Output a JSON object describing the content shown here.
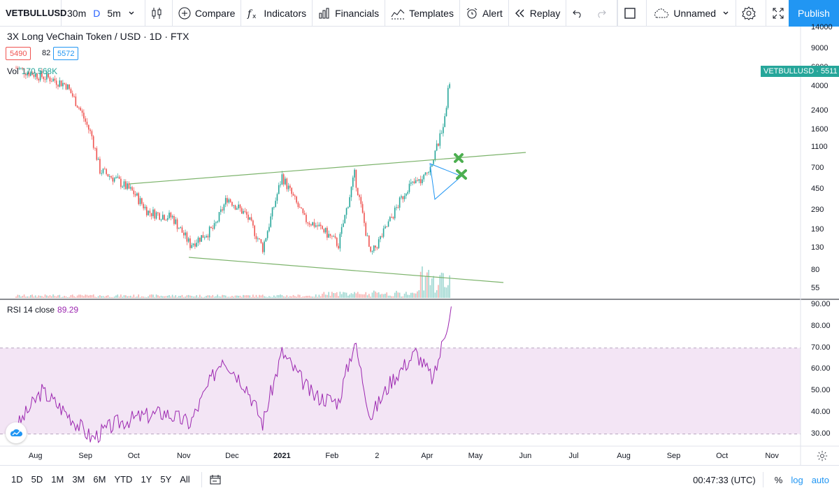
{
  "toolbar": {
    "symbol": "VETBULLUSD",
    "intervals": [
      "30m",
      "D",
      "5m"
    ],
    "active_interval": "D",
    "compare": "Compare",
    "indicators": "Indicators",
    "financials": "Financials",
    "templates": "Templates",
    "alert": "Alert",
    "replay": "Replay",
    "layout_name": "Unnamed",
    "publish": "Publish"
  },
  "legend": {
    "title": "3X Long VeChain Token / USD · 1D · FTX",
    "bid": "5490",
    "spread": "82",
    "ask": "5572",
    "vol_label": "Vol",
    "vol_value": "170.568K",
    "rsi_label": "RSI 14 close",
    "rsi_value": "89.29"
  },
  "price_tag": {
    "symbol": "VETBULLUSD",
    "value": "5511"
  },
  "price_axis": [
    "14000",
    "9000",
    "6000",
    "4000",
    "2400",
    "1600",
    "1100",
    "700",
    "450",
    "290",
    "190",
    "130",
    "80",
    "55"
  ],
  "rsi_axis": [
    "90.00",
    "80.00",
    "70.00",
    "60.00",
    "50.00",
    "40.00",
    "30.00"
  ],
  "time_axis": [
    "Aug",
    "Sep",
    "Oct",
    "Nov",
    "Dec",
    "2021",
    "Feb",
    "2",
    "Apr",
    "May",
    "Jun",
    "Jul",
    "Aug",
    "Sep",
    "Oct",
    "Nov"
  ],
  "bottom": {
    "ranges": [
      "1D",
      "5D",
      "1M",
      "3M",
      "6M",
      "YTD",
      "1Y",
      "5Y",
      "All"
    ],
    "clock": "00:47:33 (UTC)",
    "percent": "%",
    "log": "log",
    "auto": "auto"
  },
  "colors": {
    "up": "#26a69a",
    "down": "#ef5350",
    "rsi": "#9c27b0",
    "rsi_band": "#f3e5f5",
    "trendline": "#7cb36b",
    "accent": "#2196f3"
  },
  "chart_data": {
    "type": "candlestick",
    "title": "3X Long VeChain Token / USD · 1D · FTX",
    "y_scale": "log",
    "ylim": [
      45,
      14000
    ],
    "close_series": [
      {
        "date": "2020-07-20",
        "close": 6000
      },
      {
        "date": "2020-08-01",
        "close": 5200
      },
      {
        "date": "2020-08-10",
        "close": 4800
      },
      {
        "date": "2020-08-20",
        "close": 4200
      },
      {
        "date": "2020-08-28",
        "close": 2600
      },
      {
        "date": "2020-09-05",
        "close": 1400
      },
      {
        "date": "2020-09-10",
        "close": 680
      },
      {
        "date": "2020-09-20",
        "close": 560
      },
      {
        "date": "2020-10-01",
        "close": 420
      },
      {
        "date": "2020-10-10",
        "close": 280
      },
      {
        "date": "2020-10-25",
        "close": 250
      },
      {
        "date": "2020-11-05",
        "close": 140
      },
      {
        "date": "2020-11-20",
        "close": 200
      },
      {
        "date": "2020-11-28",
        "close": 380
      },
      {
        "date": "2020-12-10",
        "close": 260
      },
      {
        "date": "2020-12-20",
        "close": 130
      },
      {
        "date": "2021-01-01",
        "close": 600
      },
      {
        "date": "2021-01-15",
        "close": 240
      },
      {
        "date": "2021-01-25",
        "close": 200
      },
      {
        "date": "2021-02-05",
        "close": 140
      },
      {
        "date": "2021-02-15",
        "close": 620
      },
      {
        "date": "2021-02-25",
        "close": 110
      },
      {
        "date": "2021-03-05",
        "close": 180
      },
      {
        "date": "2021-03-20",
        "close": 480
      },
      {
        "date": "2021-03-30",
        "close": 560
      },
      {
        "date": "2021-04-05",
        "close": 900
      },
      {
        "date": "2021-04-10",
        "close": 1500
      },
      {
        "date": "2021-04-16",
        "close": 5511
      }
    ],
    "rsi": {
      "name": "RSI 14 close",
      "levels": [
        30,
        70
      ],
      "ylim": [
        25,
        92
      ],
      "points": [
        {
          "date": "2020-07-20",
          "value": 33
        },
        {
          "date": "2020-08-05",
          "value": 50
        },
        {
          "date": "2020-08-20",
          "value": 40
        },
        {
          "date": "2020-09-05",
          "value": 28
        },
        {
          "date": "2020-09-20",
          "value": 35
        },
        {
          "date": "2020-10-05",
          "value": 38
        },
        {
          "date": "2020-10-20",
          "value": 40
        },
        {
          "date": "2020-11-05",
          "value": 35
        },
        {
          "date": "2020-11-25",
          "value": 66
        },
        {
          "date": "2020-12-10",
          "value": 52
        },
        {
          "date": "2020-12-20",
          "value": 35
        },
        {
          "date": "2021-01-01",
          "value": 68
        },
        {
          "date": "2021-01-20",
          "value": 48
        },
        {
          "date": "2021-02-05",
          "value": 45
        },
        {
          "date": "2021-02-15",
          "value": 73
        },
        {
          "date": "2021-02-25",
          "value": 38
        },
        {
          "date": "2021-03-10",
          "value": 55
        },
        {
          "date": "2021-03-25",
          "value": 68
        },
        {
          "date": "2021-04-05",
          "value": 55
        },
        {
          "date": "2021-04-16",
          "value": 89.29
        }
      ]
    }
  }
}
